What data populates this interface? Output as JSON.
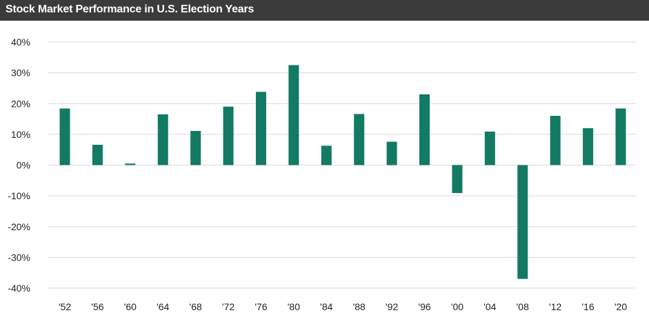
{
  "title": "Stock Market Performance in U.S. Election Years",
  "chart_data": {
    "type": "bar",
    "title": "Stock Market Performance in U.S. Election Years",
    "xlabel": "",
    "ylabel": "",
    "categories": [
      "'52",
      "'56",
      "'60",
      "'64",
      "'68",
      "'72",
      "'76",
      "'80",
      "'84",
      "'88",
      "'92",
      "'96",
      "'00",
      "'04",
      "'08",
      "'12",
      "'16",
      "'20"
    ],
    "values": [
      18.4,
      6.6,
      0.5,
      16.5,
      11.1,
      19.0,
      23.8,
      32.5,
      6.3,
      16.6,
      7.6,
      23.0,
      -9.1,
      10.9,
      -37.0,
      16.0,
      12.0,
      18.4
    ],
    "ylim": [
      -40,
      40
    ],
    "yticks": [
      40,
      30,
      20,
      10,
      0,
      -10,
      -20,
      -30,
      -40
    ],
    "ytick_labels": [
      "40%",
      "30%",
      "20%",
      "10%",
      "0%",
      "-10%",
      "-20%",
      "-30%",
      "-40%"
    ],
    "bar_color": "#137a63",
    "grid": true,
    "legend": "none"
  }
}
